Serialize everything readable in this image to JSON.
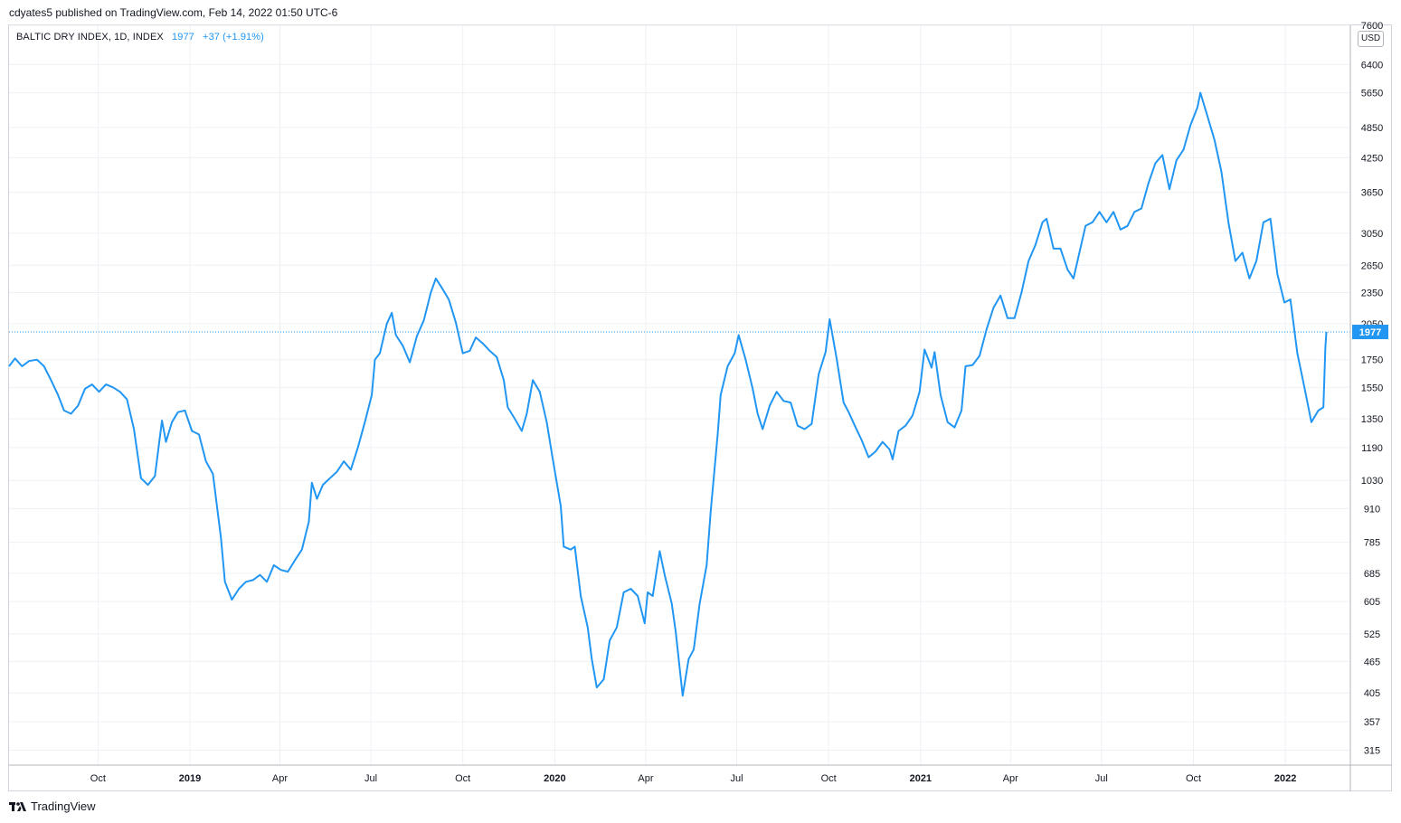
{
  "header": {
    "published": "cdyates5 published on TradingView.com, Feb 14, 2022 01:50 UTC-6"
  },
  "legend": {
    "symbol": "BALTIC DRY INDEX, 1D, INDEX",
    "last": "1977",
    "change": "+37 (+1.91%)"
  },
  "currency": "USD",
  "footer": {
    "brand": "TradingView",
    "logo_icon": "tradingview-logo-icon"
  },
  "colors": {
    "line": "#2196f3",
    "grid": "#eef0f4",
    "axis_text": "#131722",
    "price_tag": "#2196f3"
  },
  "chart_data": {
    "type": "line",
    "title": "BALTIC DRY INDEX, 1D, INDEX",
    "scale": "log",
    "ylabel": "USD",
    "ylim": [
      295,
      7600
    ],
    "grid": true,
    "last_value": 1977,
    "y_ticks": [
      7600,
      6400,
      5650,
      4850,
      4250,
      3650,
      3050,
      2650,
      2350,
      2050,
      1750,
      1550,
      1350,
      1190,
      1030,
      910,
      785,
      685,
      605,
      525,
      465,
      405,
      357,
      315
    ],
    "x_ticks": [
      {
        "label": "Oct",
        "date": "2018-10-01",
        "major": false
      },
      {
        "label": "2019",
        "date": "2019-01-01",
        "major": true
      },
      {
        "label": "Apr",
        "date": "2019-04-01",
        "major": false
      },
      {
        "label": "Jul",
        "date": "2019-07-01",
        "major": false
      },
      {
        "label": "Oct",
        "date": "2019-10-01",
        "major": false
      },
      {
        "label": "2020",
        "date": "2020-01-01",
        "major": true
      },
      {
        "label": "Apr",
        "date": "2020-04-01",
        "major": false
      },
      {
        "label": "Jul",
        "date": "2020-07-01",
        "major": false
      },
      {
        "label": "Oct",
        "date": "2020-10-01",
        "major": false
      },
      {
        "label": "2021",
        "date": "2021-01-01",
        "major": true
      },
      {
        "label": "Apr",
        "date": "2021-04-01",
        "major": false
      },
      {
        "label": "Jul",
        "date": "2021-07-01",
        "major": false
      },
      {
        "label": "Oct",
        "date": "2021-10-01",
        "major": false
      },
      {
        "label": "2022",
        "date": "2022-01-01",
        "major": true
      }
    ],
    "x_range": [
      "2018-07-04",
      "2022-03-07"
    ],
    "series": [
      {
        "points": [
          [
            "2018-07-04",
            1700
          ],
          [
            "2018-07-10",
            1760
          ],
          [
            "2018-07-17",
            1700
          ],
          [
            "2018-07-24",
            1740
          ],
          [
            "2018-08-01",
            1750
          ],
          [
            "2018-08-08",
            1700
          ],
          [
            "2018-08-15",
            1600
          ],
          [
            "2018-08-22",
            1500
          ],
          [
            "2018-08-28",
            1400
          ],
          [
            "2018-09-04",
            1380
          ],
          [
            "2018-09-11",
            1430
          ],
          [
            "2018-09-18",
            1540
          ],
          [
            "2018-09-25",
            1570
          ],
          [
            "2018-10-02",
            1520
          ],
          [
            "2018-10-09",
            1570
          ],
          [
            "2018-10-16",
            1550
          ],
          [
            "2018-10-23",
            1520
          ],
          [
            "2018-10-30",
            1470
          ],
          [
            "2018-11-06",
            1290
          ],
          [
            "2018-11-13",
            1040
          ],
          [
            "2018-11-20",
            1010
          ],
          [
            "2018-11-27",
            1050
          ],
          [
            "2018-12-04",
            1340
          ],
          [
            "2018-12-08",
            1220
          ],
          [
            "2018-12-14",
            1330
          ],
          [
            "2018-12-20",
            1390
          ],
          [
            "2018-12-27",
            1400
          ],
          [
            "2019-01-03",
            1280
          ],
          [
            "2019-01-10",
            1260
          ],
          [
            "2019-01-17",
            1120
          ],
          [
            "2019-01-24",
            1060
          ],
          [
            "2019-02-01",
            800
          ],
          [
            "2019-02-05",
            660
          ],
          [
            "2019-02-12",
            610
          ],
          [
            "2019-02-19",
            640
          ],
          [
            "2019-02-26",
            660
          ],
          [
            "2019-03-05",
            665
          ],
          [
            "2019-03-12",
            680
          ],
          [
            "2019-03-19",
            660
          ],
          [
            "2019-03-26",
            710
          ],
          [
            "2019-04-02",
            695
          ],
          [
            "2019-04-09",
            690
          ],
          [
            "2019-04-16",
            725
          ],
          [
            "2019-04-23",
            760
          ],
          [
            "2019-04-30",
            860
          ],
          [
            "2019-05-03",
            1020
          ],
          [
            "2019-05-08",
            950
          ],
          [
            "2019-05-14",
            1010
          ],
          [
            "2019-05-21",
            1040
          ],
          [
            "2019-05-28",
            1070
          ],
          [
            "2019-06-04",
            1120
          ],
          [
            "2019-06-11",
            1080
          ],
          [
            "2019-06-18",
            1190
          ],
          [
            "2019-06-25",
            1330
          ],
          [
            "2019-07-02",
            1500
          ],
          [
            "2019-07-05",
            1750
          ],
          [
            "2019-07-10",
            1800
          ],
          [
            "2019-07-17",
            2050
          ],
          [
            "2019-07-22",
            2150
          ],
          [
            "2019-07-26",
            1950
          ],
          [
            "2019-08-02",
            1860
          ],
          [
            "2019-08-09",
            1730
          ],
          [
            "2019-08-16",
            1940
          ],
          [
            "2019-08-23",
            2080
          ],
          [
            "2019-08-30",
            2350
          ],
          [
            "2019-09-04",
            2500
          ],
          [
            "2019-09-10",
            2400
          ],
          [
            "2019-09-17",
            2280
          ],
          [
            "2019-09-24",
            2060
          ],
          [
            "2019-10-01",
            1800
          ],
          [
            "2019-10-08",
            1820
          ],
          [
            "2019-10-14",
            1930
          ],
          [
            "2019-10-21",
            1880
          ],
          [
            "2019-10-28",
            1820
          ],
          [
            "2019-11-04",
            1770
          ],
          [
            "2019-11-11",
            1600
          ],
          [
            "2019-11-15",
            1420
          ],
          [
            "2019-11-22",
            1350
          ],
          [
            "2019-11-29",
            1280
          ],
          [
            "2019-12-04",
            1380
          ],
          [
            "2019-12-10",
            1600
          ],
          [
            "2019-12-17",
            1520
          ],
          [
            "2019-12-24",
            1330
          ],
          [
            "2019-12-30",
            1130
          ],
          [
            "2020-01-07",
            920
          ],
          [
            "2020-01-10",
            770
          ],
          [
            "2020-01-17",
            760
          ],
          [
            "2020-01-21",
            770
          ],
          [
            "2020-01-27",
            620
          ],
          [
            "2020-02-03",
            540
          ],
          [
            "2020-02-07",
            470
          ],
          [
            "2020-02-12",
            415
          ],
          [
            "2020-02-19",
            430
          ],
          [
            "2020-02-25",
            510
          ],
          [
            "2020-03-03",
            540
          ],
          [
            "2020-03-10",
            630
          ],
          [
            "2020-03-17",
            640
          ],
          [
            "2020-03-24",
            620
          ],
          [
            "2020-03-31",
            550
          ],
          [
            "2020-04-03",
            630
          ],
          [
            "2020-04-08",
            620
          ],
          [
            "2020-04-15",
            755
          ],
          [
            "2020-04-20",
            680
          ],
          [
            "2020-04-27",
            600
          ],
          [
            "2020-05-01",
            530
          ],
          [
            "2020-05-08",
            400
          ],
          [
            "2020-05-14",
            470
          ],
          [
            "2020-05-19",
            490
          ],
          [
            "2020-05-25",
            600
          ],
          [
            "2020-06-01",
            710
          ],
          [
            "2020-06-05",
            900
          ],
          [
            "2020-06-12",
            1260
          ],
          [
            "2020-06-15",
            1500
          ],
          [
            "2020-06-22",
            1700
          ],
          [
            "2020-06-29",
            1800
          ],
          [
            "2020-07-03",
            1950
          ],
          [
            "2020-07-10",
            1750
          ],
          [
            "2020-07-17",
            1540
          ],
          [
            "2020-07-22",
            1380
          ],
          [
            "2020-07-27",
            1290
          ],
          [
            "2020-08-03",
            1430
          ],
          [
            "2020-08-10",
            1520
          ],
          [
            "2020-08-17",
            1460
          ],
          [
            "2020-08-24",
            1450
          ],
          [
            "2020-08-31",
            1310
          ],
          [
            "2020-09-07",
            1290
          ],
          [
            "2020-09-14",
            1320
          ],
          [
            "2020-09-21",
            1640
          ],
          [
            "2020-09-28",
            1810
          ],
          [
            "2020-10-02",
            2090
          ],
          [
            "2020-10-09",
            1760
          ],
          [
            "2020-10-16",
            1450
          ],
          [
            "2020-10-21",
            1390
          ],
          [
            "2020-10-28",
            1300
          ],
          [
            "2020-11-03",
            1230
          ],
          [
            "2020-11-10",
            1140
          ],
          [
            "2020-11-17",
            1170
          ],
          [
            "2020-11-24",
            1220
          ],
          [
            "2020-12-01",
            1180
          ],
          [
            "2020-12-04",
            1130
          ],
          [
            "2020-12-10",
            1280
          ],
          [
            "2020-12-17",
            1310
          ],
          [
            "2020-12-24",
            1370
          ],
          [
            "2020-12-31",
            1520
          ],
          [
            "2021-01-05",
            1830
          ],
          [
            "2021-01-12",
            1690
          ],
          [
            "2021-01-15",
            1810
          ],
          [
            "2021-01-21",
            1500
          ],
          [
            "2021-01-28",
            1330
          ],
          [
            "2021-02-04",
            1300
          ],
          [
            "2021-02-11",
            1400
          ],
          [
            "2021-02-15",
            1700
          ],
          [
            "2021-02-22",
            1710
          ],
          [
            "2021-03-01",
            1780
          ],
          [
            "2021-03-08",
            2000
          ],
          [
            "2021-03-15",
            2200
          ],
          [
            "2021-03-22",
            2320
          ],
          [
            "2021-03-29",
            2100
          ],
          [
            "2021-04-05",
            2100
          ],
          [
            "2021-04-12",
            2350
          ],
          [
            "2021-04-19",
            2700
          ],
          [
            "2021-04-26",
            2900
          ],
          [
            "2021-05-03",
            3200
          ],
          [
            "2021-05-07",
            3250
          ],
          [
            "2021-05-14",
            2850
          ],
          [
            "2021-05-21",
            2850
          ],
          [
            "2021-05-28",
            2600
          ],
          [
            "2021-06-03",
            2500
          ],
          [
            "2021-06-08",
            2750
          ],
          [
            "2021-06-15",
            3150
          ],
          [
            "2021-06-22",
            3200
          ],
          [
            "2021-06-29",
            3350
          ],
          [
            "2021-07-06",
            3200
          ],
          [
            "2021-07-13",
            3350
          ],
          [
            "2021-07-20",
            3100
          ],
          [
            "2021-07-27",
            3150
          ],
          [
            "2021-08-03",
            3350
          ],
          [
            "2021-08-10",
            3400
          ],
          [
            "2021-08-17",
            3800
          ],
          [
            "2021-08-24",
            4150
          ],
          [
            "2021-08-31",
            4300
          ],
          [
            "2021-09-07",
            3700
          ],
          [
            "2021-09-14",
            4200
          ],
          [
            "2021-09-21",
            4400
          ],
          [
            "2021-09-28",
            4900
          ],
          [
            "2021-10-05",
            5300
          ],
          [
            "2021-10-08",
            5650
          ],
          [
            "2021-10-15",
            5100
          ],
          [
            "2021-10-22",
            4600
          ],
          [
            "2021-10-29",
            4000
          ],
          [
            "2021-11-05",
            3200
          ],
          [
            "2021-11-12",
            2700
          ],
          [
            "2021-11-19",
            2800
          ],
          [
            "2021-11-26",
            2500
          ],
          [
            "2021-12-03",
            2700
          ],
          [
            "2021-12-10",
            3200
          ],
          [
            "2021-12-17",
            3250
          ],
          [
            "2021-12-24",
            2550
          ],
          [
            "2021-12-31",
            2250
          ],
          [
            "2022-01-06",
            2280
          ],
          [
            "2022-01-13",
            1800
          ],
          [
            "2022-01-20",
            1550
          ],
          [
            "2022-01-27",
            1330
          ],
          [
            "2022-02-03",
            1400
          ],
          [
            "2022-02-08",
            1420
          ],
          [
            "2022-02-10",
            1850
          ],
          [
            "2022-02-11",
            1977
          ]
        ]
      }
    ]
  }
}
